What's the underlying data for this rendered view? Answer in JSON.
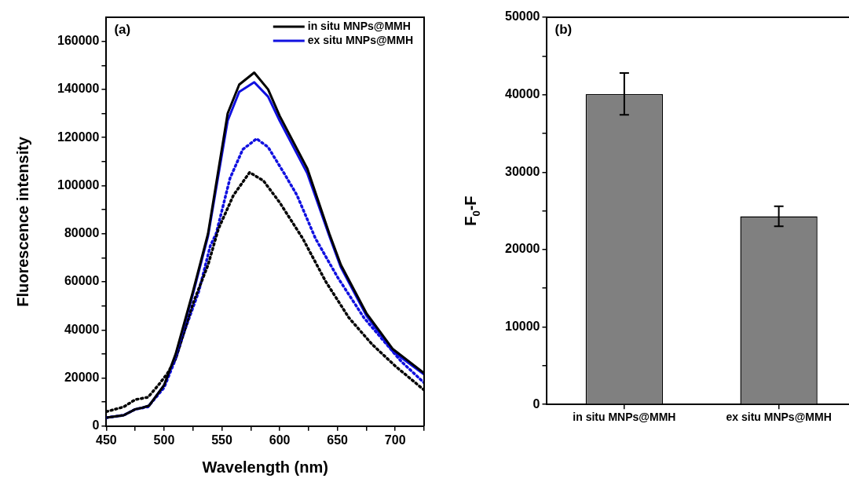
{
  "chart_data": [
    {
      "type": "line",
      "title": "(a)",
      "xlabel": "Wavelength (nm)",
      "ylabel": "Fluorescence intensity",
      "xlim": [
        450,
        725
      ],
      "ylim": [
        0,
        170000
      ],
      "xticks": [
        450,
        {
          "value": 475,
          "label": null
        },
        500,
        {
          "value": 525,
          "label": null
        },
        550,
        {
          "value": 575,
          "label": null
        },
        600,
        {
          "value": 625,
          "label": null
        },
        650,
        {
          "value": 675,
          "label": null
        },
        700,
        {
          "value": 725,
          "label": null
        }
      ],
      "yticks": [
        0,
        {
          "value": 10000,
          "label": null
        },
        20000,
        {
          "value": 30000,
          "label": null
        },
        40000,
        {
          "value": 50000,
          "label": null
        },
        60000,
        {
          "value": 70000,
          "label": null
        },
        80000,
        {
          "value": 90000,
          "label": null
        },
        100000,
        {
          "value": 110000,
          "label": null
        },
        120000,
        {
          "value": 130000,
          "label": null
        },
        140000,
        {
          "value": 150000,
          "label": null
        },
        160000
      ],
      "legend": "top right",
      "series": [
        {
          "name": "in situ MNPs@MMH",
          "color": "#000000",
          "line_style": "solid",
          "x": [
            450,
            465,
            475,
            480,
            487,
            500,
            510,
            525,
            538,
            555,
            565,
            578,
            590,
            600,
            624,
            643,
            653,
            675,
            698,
            725
          ],
          "values": [
            3500,
            4500,
            7000,
            7500,
            8500,
            17000,
            30000,
            56000,
            80000,
            130000,
            142000,
            147000,
            140000,
            129000,
            107000,
            80000,
            67000,
            47000,
            32000,
            22000
          ]
        },
        {
          "name": "ex situ MNPs@MMH",
          "color": "#1010e0",
          "line_style": "solid",
          "x": [
            450,
            465,
            475,
            480,
            487,
            500,
            510,
            525,
            538,
            555,
            565,
            578,
            590,
            600,
            624,
            643,
            653,
            675,
            698,
            725
          ],
          "values": [
            3500,
            4500,
            7000,
            7500,
            8500,
            17000,
            29000,
            55000,
            79000,
            127000,
            139000,
            143000,
            137000,
            127000,
            105000,
            79000,
            66000,
            46000,
            31000,
            21500
          ]
        },
        {
          "color": "#000000",
          "line_style": "dotted",
          "x": [
            450,
            465,
            475,
            486,
            495,
            503,
            510,
            525,
            538,
            547,
            560,
            574,
            586,
            600,
            620,
            640,
            660,
            680,
            700,
            725
          ],
          "values": [
            6000,
            8000,
            11000,
            12000,
            17000,
            22000,
            28000,
            51000,
            67000,
            82000,
            96000,
            105500,
            102000,
            93000,
            78000,
            60000,
            45000,
            34000,
            25000,
            15000
          ]
        },
        {
          "color": "#1010e0",
          "line_style": "dotted",
          "x": [
            450,
            465,
            475,
            486,
            500,
            510,
            518,
            530,
            540,
            545,
            557,
            568,
            580,
            590,
            604,
            615,
            631,
            650,
            673,
            705,
            725
          ],
          "values": [
            3500,
            4500,
            7000,
            8000,
            16000,
            28000,
            40000,
            56000,
            75000,
            80000,
            103000,
            115000,
            119500,
            116000,
            105000,
            96000,
            78000,
            62000,
            45000,
            27000,
            18000
          ]
        }
      ]
    },
    {
      "type": "bar",
      "title": "(b)",
      "ylabel": "F$_{0}$-F",
      "categories": [
        "in situ MNPs@MMH",
        "ex situ MNPs@MMH"
      ],
      "values": [
        40100,
        24300
      ],
      "errors": [
        2700,
        1300
      ],
      "color": "#808080",
      "ylim": [
        0,
        50000
      ],
      "yticks": [
        0,
        {
          "value": 5000,
          "label": null
        },
        10000,
        {
          "value": 15000,
          "label": null
        },
        20000,
        {
          "value": 25000,
          "label": null
        },
        30000,
        {
          "value": 35000,
          "label": null
        },
        40000,
        {
          "value": 45000,
          "label": null
        },
        50000
      ]
    }
  ]
}
